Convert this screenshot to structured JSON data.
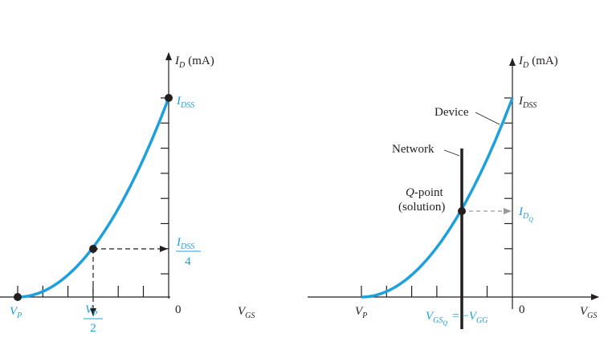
{
  "left": {
    "y_axis_label": {
      "symbol": "I",
      "subscript": "D",
      "unit": "(mA)"
    },
    "idss": {
      "symbol": "I",
      "subscript": "DSS"
    },
    "idss_over_4": {
      "symbol": "I",
      "subscript": "DSS",
      "denominator": "4"
    },
    "vp": {
      "symbol": "V",
      "subscript": "P"
    },
    "vp_over_2": {
      "symbol": "V",
      "subscript": "P",
      "denominator": "2"
    },
    "origin": "0",
    "x_axis_label": {
      "symbol": "V",
      "subscript": "GS"
    }
  },
  "right": {
    "y_axis_label": {
      "symbol": "I",
      "subscript": "D",
      "unit": "(mA)"
    },
    "idss": {
      "symbol": "I",
      "subscript": "DSS"
    },
    "device": "Device",
    "network": "Network",
    "q_point": {
      "symbol": "Q",
      "rest": "-point",
      "line2": "(solution)"
    },
    "idq": {
      "symbol": "I",
      "subscript": "D",
      "subsub": "Q"
    },
    "vp": {
      "symbol": "V",
      "subscript": "P"
    },
    "vgsq": {
      "symbol": "V",
      "subscript": "GS",
      "subsub": "Q",
      "equals": "= −",
      "symbol2": "V",
      "subscript2": "GG"
    },
    "origin": "0",
    "x_axis_label": {
      "symbol": "V",
      "subscript": "GS"
    }
  }
}
